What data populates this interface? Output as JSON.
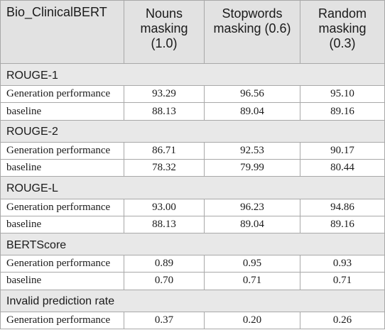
{
  "header": {
    "col0": "Bio_ClinicalBERT",
    "col1": [
      "Nouns",
      "masking",
      "(1.0)"
    ],
    "col2": [
      "Stopwords",
      "masking (0.6)"
    ],
    "col3": [
      "Random",
      "masking",
      "(0.3)"
    ]
  },
  "sections": [
    {
      "title": "ROUGE-1",
      "rows": [
        {
          "label": "Generation performance",
          "values": [
            "93.29",
            "96.56",
            "95.10"
          ]
        },
        {
          "label": "baseline",
          "values": [
            "88.13",
            "89.04",
            "89.16"
          ]
        }
      ]
    },
    {
      "title": "ROUGE-2",
      "rows": [
        {
          "label": "Generation performance",
          "values": [
            "86.71",
            "92.53",
            "90.17"
          ]
        },
        {
          "label": "baseline",
          "values": [
            "78.32",
            "79.99",
            "80.44"
          ]
        }
      ]
    },
    {
      "title": "ROUGE-L",
      "rows": [
        {
          "label": "Generation performance",
          "values": [
            "93.00",
            "96.23",
            "94.86"
          ]
        },
        {
          "label": "baseline",
          "values": [
            "88.13",
            "89.04",
            "89.16"
          ]
        }
      ]
    },
    {
      "title": "BERTScore",
      "rows": [
        {
          "label": "Generation performance",
          "values": [
            "0.89",
            "0.95",
            "0.93"
          ]
        },
        {
          "label": "baseline",
          "values": [
            "0.70",
            "0.71",
            "0.71"
          ]
        }
      ]
    },
    {
      "title": "Invalid prediction rate",
      "rows": [
        {
          "label": "Generation performance",
          "values": [
            "0.37",
            "0.20",
            "0.26"
          ]
        }
      ]
    }
  ]
}
